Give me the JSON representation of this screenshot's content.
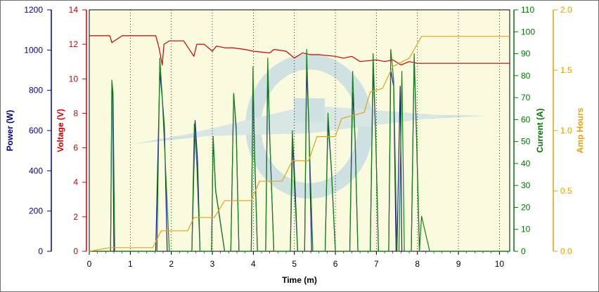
{
  "chart_data": {
    "type": "line",
    "title": "",
    "xlabel": "Time (m)",
    "xlim": [
      0,
      10.25
    ],
    "x_ticks": [
      "0",
      "1",
      "2",
      "3",
      "4",
      "5",
      "6",
      "7",
      "8",
      "9",
      "10"
    ],
    "grid": "vertical dotted",
    "background": "#fafadf",
    "axes": {
      "power": {
        "label": "Power (W)",
        "side": "left-outer",
        "color": "#00008b",
        "ylim": [
          0,
          1200
        ],
        "ticks": [
          "0",
          "200",
          "400",
          "600",
          "800",
          "1000",
          "1200"
        ]
      },
      "voltage": {
        "label": "Voltage (V)",
        "side": "left-inner",
        "color": "#d00000",
        "ylim": [
          0,
          14
        ],
        "ticks": [
          "0",
          "2",
          "4",
          "6",
          "8",
          "10",
          "12",
          "14"
        ]
      },
      "current": {
        "label": "Current (A)",
        "side": "right-inner",
        "color": "#007700",
        "ylim": [
          0,
          110
        ],
        "ticks": [
          "0",
          "10",
          "20",
          "30",
          "40",
          "50",
          "60",
          "70",
          "80",
          "90",
          "100",
          "110"
        ]
      },
      "amphours": {
        "label": "Amp Hours",
        "side": "right-outer",
        "color": "#e8a000",
        "ylim": [
          0,
          2.0
        ],
        "ticks": [
          "0.0",
          "0.5",
          "1.0",
          "1.5",
          "2.0"
        ]
      }
    },
    "series": [
      {
        "axis": "voltage",
        "color": "#cc0000",
        "x": [
          0,
          0.5,
          0.55,
          0.8,
          1.62,
          1.7,
          1.78,
          1.82,
          1.95,
          2.3,
          2.55,
          2.62,
          2.8,
          3.0,
          3.1,
          3.3,
          3.5,
          3.8,
          4.0,
          4.4,
          4.5,
          4.8,
          5.0,
          5.2,
          5.4,
          5.6,
          6.0,
          6.2,
          6.4,
          6.6,
          7.0,
          7.2,
          7.4,
          7.6,
          7.8,
          8.0,
          10.25
        ],
        "y": [
          12.5,
          12.5,
          12.1,
          12.5,
          12.5,
          11.8,
          10.8,
          12.0,
          12.2,
          12.2,
          11.3,
          12.0,
          12.0,
          11.6,
          11.9,
          11.8,
          11.8,
          11.7,
          11.6,
          11.5,
          11.7,
          11.6,
          11.2,
          11.5,
          11.4,
          11.4,
          11.3,
          11.2,
          11.3,
          11.0,
          11.1,
          11.0,
          11.1,
          10.8,
          11.0,
          10.9,
          10.9
        ]
      },
      {
        "axis": "power",
        "color": "#1a1aa6",
        "x": [
          0,
          0.52,
          0.55,
          0.57,
          0.6,
          1.62,
          1.72,
          1.78,
          1.83,
          1.9,
          2.5,
          2.58,
          2.64,
          2.7,
          2.98,
          3.02,
          3.08,
          3.3,
          3.45,
          3.52,
          3.58,
          3.65,
          3.95,
          3.99,
          4.03,
          4.1,
          4.3,
          4.35,
          4.4,
          4.5,
          4.9,
          4.96,
          5.0,
          5.08,
          5.25,
          5.3,
          5.35,
          5.42,
          5.75,
          5.82,
          5.9,
          6.0,
          6.35,
          6.42,
          6.48,
          6.55,
          6.85,
          6.92,
          6.98,
          7.05,
          7.3,
          7.35,
          7.42,
          7.48,
          7.5,
          7.58,
          7.62,
          7.85,
          7.92,
          7.98,
          8.05,
          10.25
        ],
        "y": [
          0,
          0,
          810,
          780,
          0,
          0,
          890,
          760,
          620,
          0,
          0,
          650,
          450,
          0,
          0,
          570,
          300,
          0,
          0,
          780,
          620,
          0,
          0,
          850,
          480,
          0,
          0,
          880,
          560,
          0,
          0,
          560,
          400,
          0,
          0,
          900,
          660,
          0,
          0,
          640,
          420,
          0,
          0,
          790,
          560,
          0,
          0,
          910,
          600,
          0,
          0,
          900,
          820,
          0,
          0,
          820,
          0,
          0,
          960,
          560,
          0,
          0
        ]
      },
      {
        "axis": "current",
        "color": "#158215",
        "x": [
          0,
          0.52,
          0.55,
          0.58,
          0.62,
          1.65,
          1.72,
          1.78,
          1.85,
          1.95,
          2.5,
          2.56,
          2.62,
          2.7,
          2.98,
          3.02,
          3.08,
          3.3,
          3.45,
          3.52,
          3.58,
          3.65,
          3.95,
          3.99,
          4.03,
          4.1,
          4.3,
          4.35,
          4.4,
          4.5,
          4.9,
          4.95,
          5.0,
          5.08,
          5.25,
          5.3,
          5.35,
          5.45,
          5.75,
          5.82,
          5.9,
          6.0,
          6.35,
          6.42,
          6.48,
          6.55,
          6.85,
          6.92,
          6.98,
          7.05,
          7.3,
          7.35,
          7.42,
          7.5,
          7.55,
          7.62,
          7.68,
          7.85,
          7.92,
          7.98,
          8.05,
          8.1,
          8.3,
          10.25
        ],
        "y": [
          0,
          0,
          78,
          72,
          0,
          0,
          88,
          70,
          42,
          0,
          0,
          58,
          40,
          0,
          0,
          52,
          28,
          0,
          0,
          72,
          55,
          0,
          0,
          84,
          46,
          0,
          0,
          88,
          52,
          0,
          0,
          55,
          30,
          0,
          0,
          92,
          58,
          0,
          0,
          63,
          38,
          0,
          0,
          82,
          50,
          0,
          0,
          90,
          55,
          0,
          0,
          92,
          78,
          0,
          0,
          82,
          0,
          0,
          90,
          50,
          0,
          16,
          0,
          0
        ]
      },
      {
        "axis": "amphours",
        "color": "#e3a21a",
        "x": [
          0,
          0.5,
          1.55,
          1.75,
          2.4,
          2.55,
          3.05,
          3.3,
          3.95,
          4.15,
          4.7,
          4.95,
          5.35,
          5.55,
          6.0,
          6.15,
          6.7,
          6.85,
          7.15,
          7.4,
          7.8,
          8.1,
          10.25
        ],
        "y": [
          0.0,
          0.03,
          0.03,
          0.17,
          0.17,
          0.28,
          0.28,
          0.42,
          0.42,
          0.58,
          0.58,
          0.75,
          0.75,
          0.95,
          0.95,
          1.1,
          1.15,
          1.32,
          1.35,
          1.53,
          1.6,
          1.78,
          1.78
        ]
      }
    ]
  }
}
